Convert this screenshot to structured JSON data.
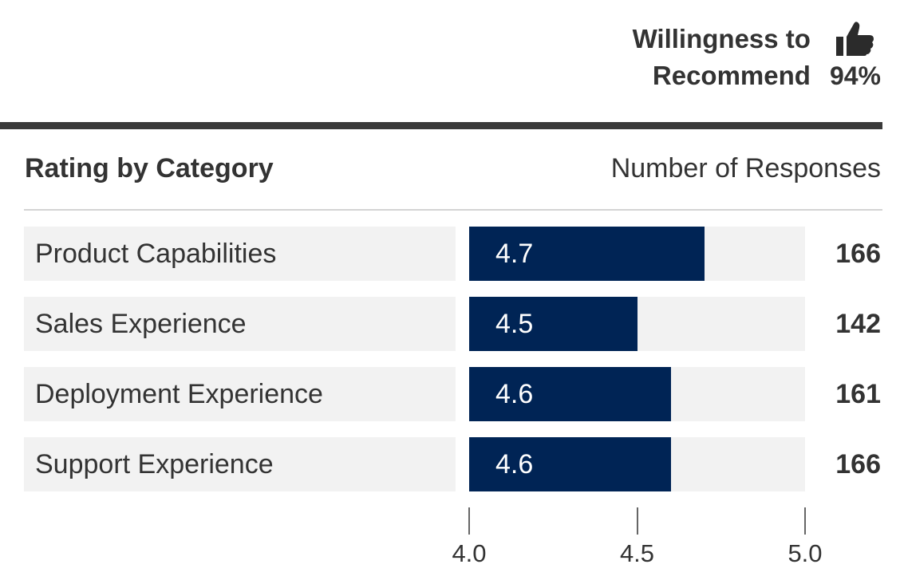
{
  "summary": {
    "label_line1": "Willingness to",
    "label_line2": "Recommend",
    "icon": "thumbs-up-icon",
    "value": "94%"
  },
  "section": {
    "title": "Rating by Category",
    "responses_header": "Number of Responses"
  },
  "colors": {
    "bar": "#002455",
    "track": "#f2f2f2",
    "text": "#333333"
  },
  "chart_data": {
    "type": "bar",
    "orientation": "horizontal",
    "title": "Rating by Category",
    "categories": [
      "Product Capabilities",
      "Sales Experience",
      "Deployment Experience",
      "Support Experience"
    ],
    "values": [
      4.7,
      4.5,
      4.6,
      4.6
    ],
    "value_labels": [
      "4.7",
      "4.5",
      "4.6",
      "4.6"
    ],
    "responses_label": "Number of Responses",
    "responses": [
      "166",
      "142",
      "161",
      "166"
    ],
    "xlim": [
      4.0,
      5.0
    ],
    "ticks": [
      4.0,
      4.5,
      5.0
    ],
    "tick_labels": [
      "4.0",
      "4.5",
      "5.0"
    ],
    "grid": false
  }
}
